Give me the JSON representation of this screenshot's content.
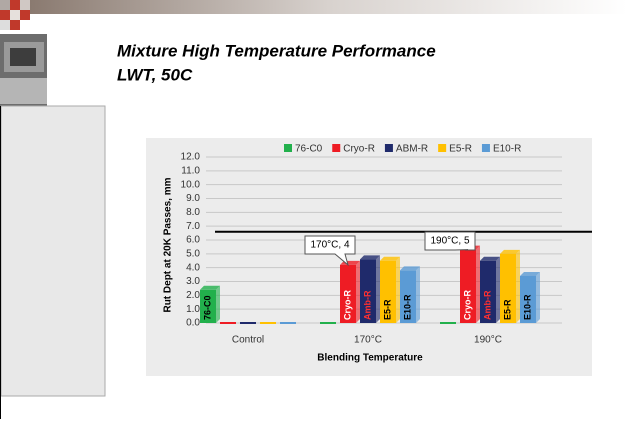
{
  "slide": {
    "title_lines": [
      "Mixture High Temperature Performance",
      "LWT, 50C"
    ]
  },
  "chart_data": {
    "type": "bar",
    "y_axis_label": "Rut Dept at 20K Passes, mm",
    "x_axis_label": "Blending Temperature",
    "categories": [
      "Control",
      "170°C",
      "190°C"
    ],
    "series": [
      {
        "name": "76-C0",
        "color": "#22b04c",
        "bar_label": "76-C0",
        "label_color": "#000000",
        "values": [
          2.4,
          0,
          0
        ]
      },
      {
        "name": "Cryo-R",
        "color": "#ee1c24",
        "bar_label": "Cryo-R",
        "label_color": "#ffffff",
        "values": [
          0,
          4.2,
          5.3
        ]
      },
      {
        "name": "ABM-R",
        "color": "#1f2a6b",
        "bar_label": "Amb-R",
        "label_color": "#ff3030",
        "values": [
          0,
          4.6,
          4.5
        ]
      },
      {
        "name": "E5-R",
        "color": "#ffc000",
        "bar_label": "E5-R",
        "label_color": "#000000",
        "values": [
          0,
          4.5,
          5.0
        ]
      },
      {
        "name": "E10-R",
        "color": "#5b9bd5",
        "bar_label": "E10-R",
        "label_color": "#000000",
        "values": [
          0,
          3.8,
          3.4
        ]
      }
    ],
    "ylim": [
      0,
      12
    ],
    "yticks": [
      {
        "value": 0,
        "label": "0.0"
      },
      {
        "value": 1,
        "label": "1.0"
      },
      {
        "value": 2,
        "label": "2.0"
      },
      {
        "value": 3,
        "label": "3.0"
      },
      {
        "value": 4,
        "label": "4.0"
      },
      {
        "value": 5,
        "label": "5.0"
      },
      {
        "value": 6,
        "label": "6.0"
      },
      {
        "value": 7,
        "label": "7.0"
      },
      {
        "value": 8,
        "label": "8.0"
      },
      {
        "value": 9,
        "label": "9.0"
      },
      {
        "value": 10,
        "label": "10.0"
      },
      {
        "value": 11,
        "label": "11.0"
      },
      {
        "value": 12,
        "label": "12.0"
      }
    ],
    "grid": true,
    "reference_line": 6.6,
    "annotations": [
      "170°C, 4",
      "190°C, 5"
    ]
  }
}
